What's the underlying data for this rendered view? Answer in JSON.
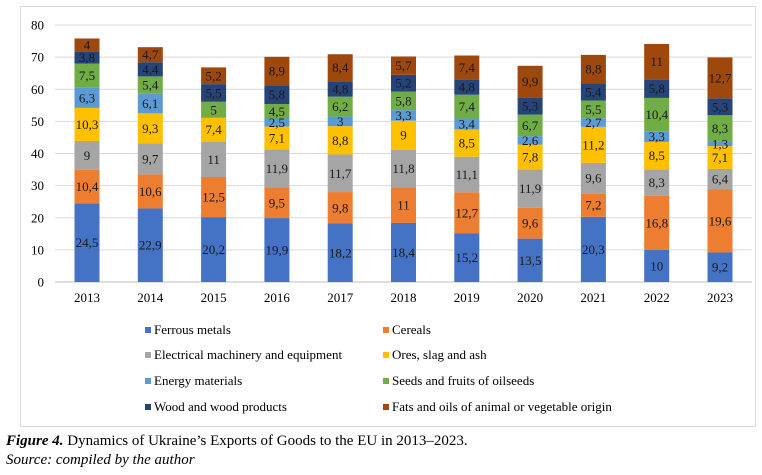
{
  "chart_data": {
    "type": "bar",
    "stacked": true,
    "title": "",
    "xlabel": "",
    "ylabel": "",
    "ylim": [
      0,
      80
    ],
    "yticks": [
      0,
      10,
      20,
      30,
      40,
      50,
      60,
      70,
      80
    ],
    "grid": true,
    "legend_position": "bottom",
    "categories": [
      "2013",
      "2014",
      "2015",
      "2016",
      "2017",
      "2018",
      "2019",
      "2020",
      "2021",
      "2022",
      "2023"
    ],
    "series": [
      {
        "name": "Ferrous metals",
        "color": "#4472c4",
        "values": [
          24.5,
          22.9,
          20.2,
          19.9,
          18.2,
          18.4,
          15.2,
          13.5,
          20.3,
          10,
          9.2
        ],
        "labels": [
          "24,5",
          "22,9",
          "20,2",
          "19,9",
          "18,2",
          "18,4",
          "15,2",
          "13,5",
          "20,3",
          "10",
          "9,2"
        ]
      },
      {
        "name": "Cereals",
        "color": "#ed7d31",
        "values": [
          10.4,
          10.6,
          12.5,
          9.5,
          9.8,
          11,
          12.7,
          9.6,
          7.2,
          16.8,
          19.6
        ],
        "labels": [
          "10,4",
          "10,6",
          "12,5",
          "9,5",
          "9,8",
          "11",
          "12,7",
          "9,6",
          "7,2",
          "16,8",
          "19,6"
        ]
      },
      {
        "name": "Electrical machinery and equipment",
        "color": "#a5a5a5",
        "values": [
          9,
          9.7,
          11,
          11.9,
          11.7,
          11.8,
          11.1,
          11.9,
          9.6,
          8.3,
          6.4
        ],
        "labels": [
          "9",
          "9,7",
          "11",
          "11,9",
          "11,7",
          "11,8",
          "11,1",
          "11,9",
          "9,6",
          "8,3",
          "6,4"
        ]
      },
      {
        "name": "Ores, slag and ash",
        "color": "#ffc000",
        "values": [
          10.3,
          9.3,
          7.4,
          7.1,
          8.8,
          9,
          8.5,
          7.8,
          11.2,
          8.5,
          7.1
        ],
        "labels": [
          "10,3",
          "9,3",
          "7,4",
          "7,1",
          "8,8",
          "9",
          "8,5",
          "7,8",
          "11,2",
          "8,5",
          "7,1"
        ]
      },
      {
        "name": "Energy materials",
        "color": "#5b9bd5",
        "values": [
          6.3,
          6.1,
          0,
          2.5,
          3,
          3.3,
          3.4,
          2.6,
          2.7,
          3.3,
          1.3
        ],
        "labels": [
          "6,3",
          "6,1",
          "",
          "2,5",
          "3",
          "3,3",
          "3,4",
          "2,6",
          "2,7",
          "3,3",
          "1,3"
        ]
      },
      {
        "name": "Seeds and fruits of oilseeds",
        "color": "#70ad47",
        "values": [
          7.5,
          5.4,
          5,
          4.5,
          6.2,
          5.8,
          7.4,
          6.7,
          5.5,
          10.4,
          8.3
        ],
        "labels": [
          "7,5",
          "5,4",
          "5",
          "4,5",
          "6,2",
          "5,8",
          "7,4",
          "6,7",
          "5,5",
          "10,4",
          "8,3"
        ]
      },
      {
        "name": "Wood and wood products",
        "color": "#264478",
        "values": [
          3.8,
          4.4,
          5.5,
          5.8,
          4.8,
          5.2,
          4.8,
          5.3,
          5.4,
          5.8,
          5.3
        ],
        "labels": [
          "3,8",
          "4,4",
          "5,5",
          "5,8",
          "4,8",
          "5,2",
          "4,8",
          "5,3",
          "5,4",
          "5,8",
          "5,3"
        ]
      },
      {
        "name": "Fats and oils of animal or vegetable origin",
        "color": "#9e480e",
        "values": [
          4,
          4.7,
          5.2,
          8.9,
          8.4,
          5.7,
          7.4,
          9.9,
          8.8,
          11,
          12.7
        ],
        "labels": [
          "4",
          "4,7",
          "5,2",
          "8,9",
          "8,4",
          "5,7",
          "7,4",
          "9,9",
          "8,8",
          "11",
          "12,7"
        ]
      }
    ]
  },
  "caption": {
    "figure_label": "Figure 4.",
    "text": " Dynamics of Ukraine’s Exports of Goods to the EU in 2013–2023.",
    "source": "Source: compiled by the author"
  }
}
